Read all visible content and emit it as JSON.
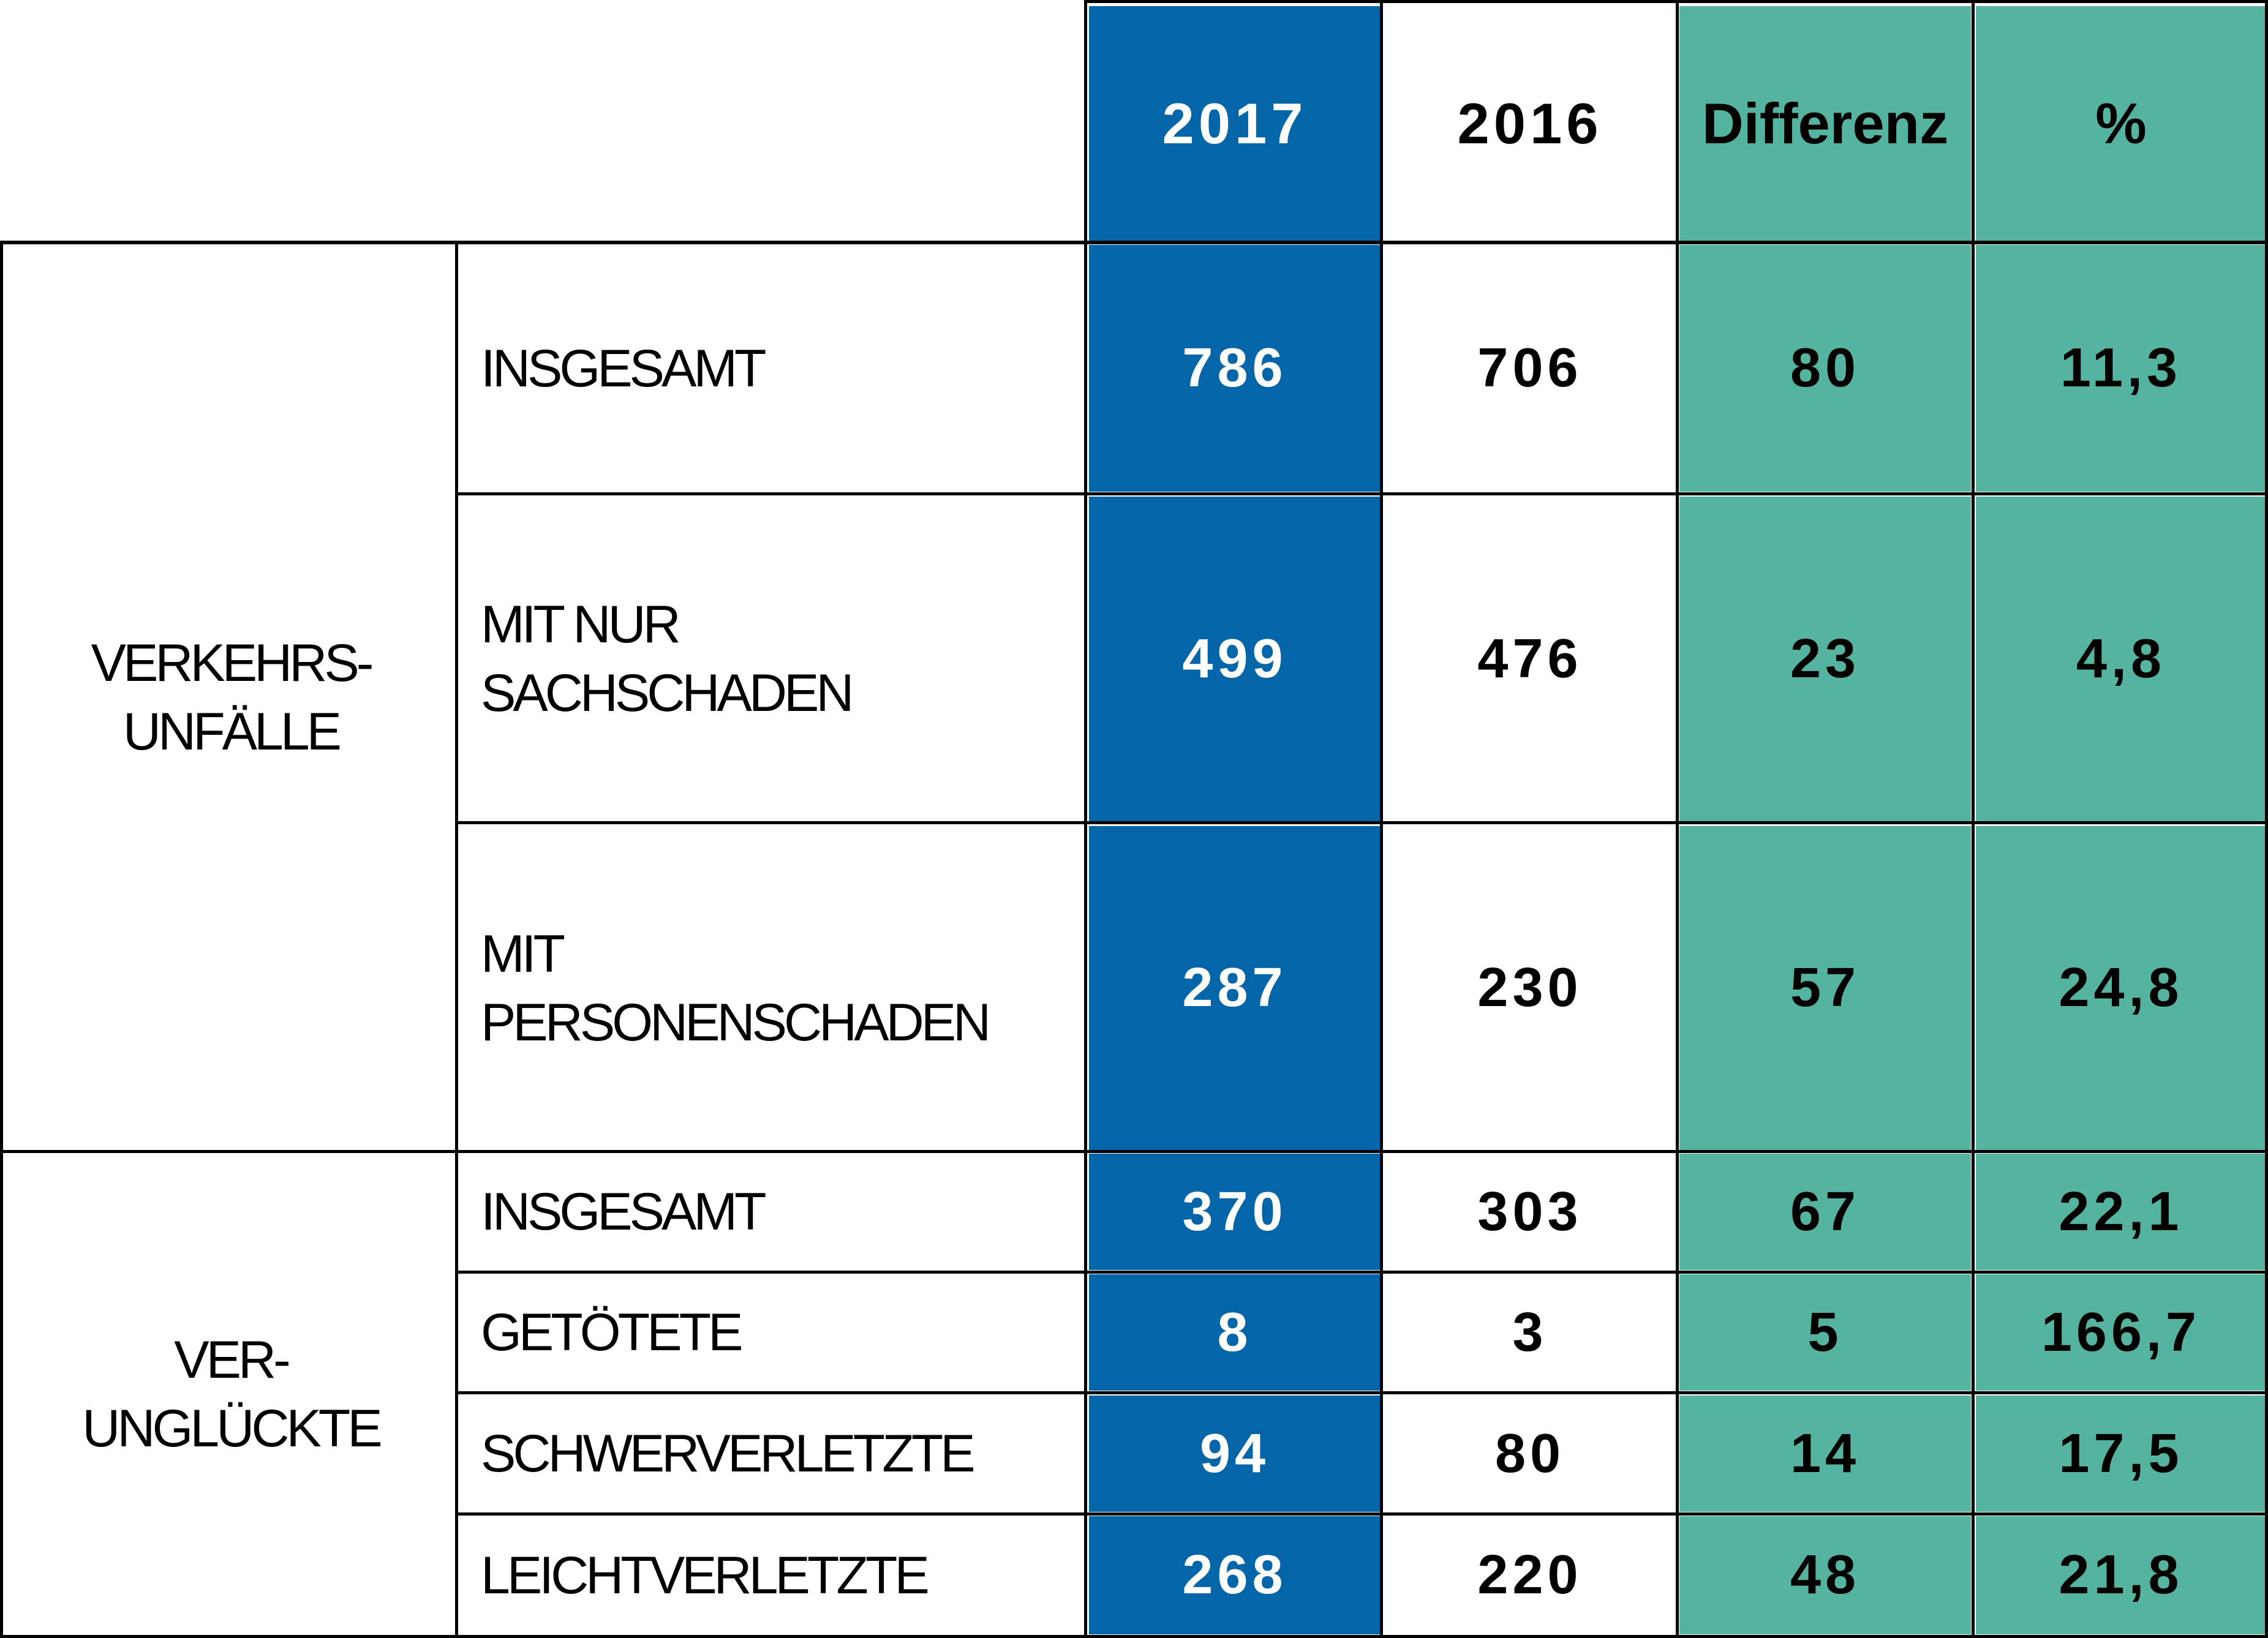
{
  "header": {
    "col_2017": "2017",
    "col_2016": "2016",
    "col_diff": "Differenz",
    "col_pct": "%"
  },
  "groups": [
    {
      "label": "VERKEHRS-\nUNFÄLLE",
      "rows": [
        {
          "label": "INSGESAMT",
          "v2017": "786",
          "v2016": "706",
          "diff": "80",
          "pct": "11,3"
        },
        {
          "label": "MIT NUR\nSACHSCHADEN",
          "v2017": "499",
          "v2016": "476",
          "diff": "23",
          "pct": "4,8"
        },
        {
          "label": "MIT\nPERSONENSCHADEN",
          "v2017": "287",
          "v2016": "230",
          "diff": "57",
          "pct": "24,8"
        }
      ]
    },
    {
      "label": "VER-\nUNGLÜCKTE",
      "rows": [
        {
          "label": "INSGESAMT",
          "v2017": "370",
          "v2016": "303",
          "diff": "67",
          "pct": "22,1"
        },
        {
          "label": "GETÖTETE",
          "v2017": "8",
          "v2016": "3",
          "diff": "5",
          "pct": "166,7"
        },
        {
          "label": "SCHWERVERLETZTE",
          "v2017": "94",
          "v2016": "80",
          "diff": "14",
          "pct": "17,5"
        },
        {
          "label": "LEICHTVERLETZTE",
          "v2017": "268",
          "v2016": "220",
          "diff": "48",
          "pct": "21,8"
        }
      ]
    }
  ],
  "colors": {
    "col_2017": "#0565a9",
    "col_diff_pct": "#55b4a0"
  }
}
